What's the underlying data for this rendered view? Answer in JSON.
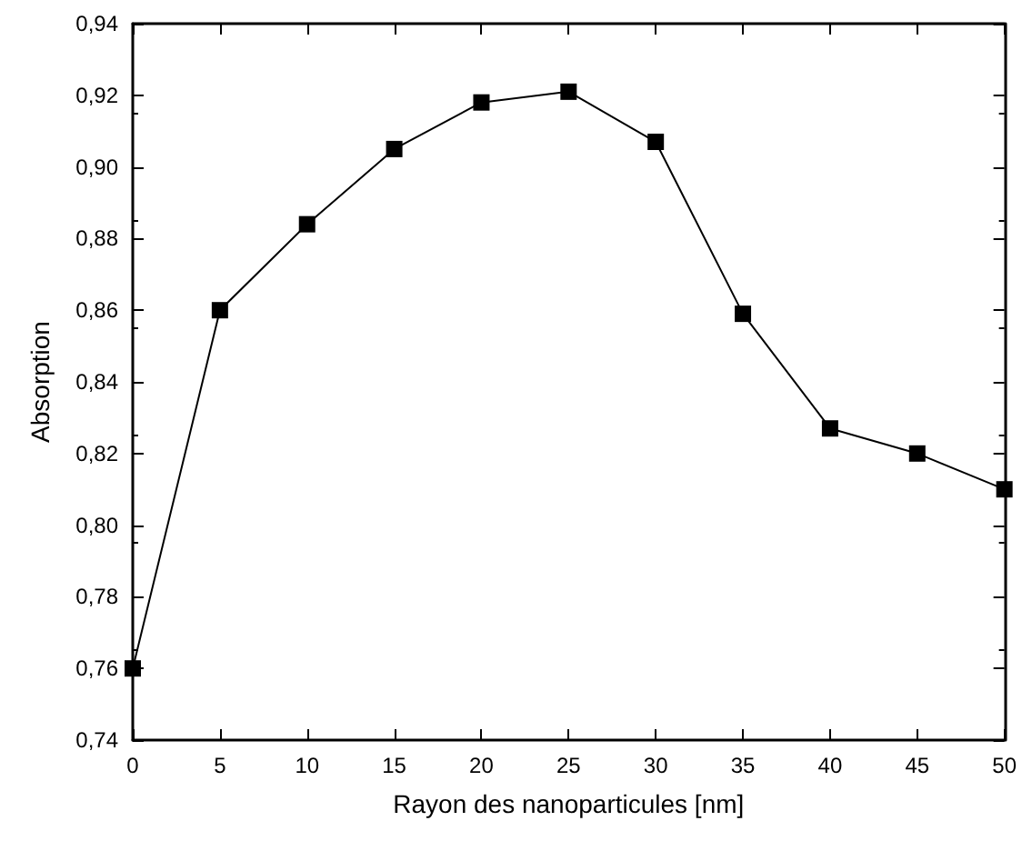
{
  "chart_data": {
    "type": "line",
    "xlabel": "Rayon des nanoparticules [nm]",
    "ylabel": "Absorption",
    "x": [
      0,
      5,
      10,
      15,
      20,
      25,
      30,
      35,
      40,
      45,
      50
    ],
    "series": [
      {
        "color": "#000000",
        "values": [
          0.76,
          0.86,
          0.884,
          0.905,
          0.918,
          0.921,
          0.907,
          0.859,
          0.827,
          0.82,
          0.81
        ]
      }
    ],
    "xlim": [
      0,
      50
    ],
    "xticks": [
      0,
      5,
      10,
      15,
      20,
      25,
      30,
      35,
      40,
      45,
      50
    ],
    "ylim": [
      0.74,
      0.94
    ],
    "yticks": [
      {
        "value": 0.74,
        "label": "0,74"
      },
      {
        "value": 0.76,
        "label": "0,76"
      },
      {
        "value": 0.78,
        "label": "0,78"
      },
      {
        "value": 0.8,
        "label": "0,80"
      },
      {
        "value": 0.82,
        "label": "0,82"
      },
      {
        "value": 0.84,
        "label": "0,84"
      },
      {
        "value": 0.86,
        "label": "0,86"
      },
      {
        "value": 0.88,
        "label": "0,88"
      },
      {
        "value": 0.9,
        "label": "0,90"
      },
      {
        "value": 0.92,
        "label": "0,92"
      },
      {
        "value": 0.94,
        "label": "0,94"
      }
    ],
    "grid": false,
    "marker": "square",
    "line_style": "solid"
  }
}
